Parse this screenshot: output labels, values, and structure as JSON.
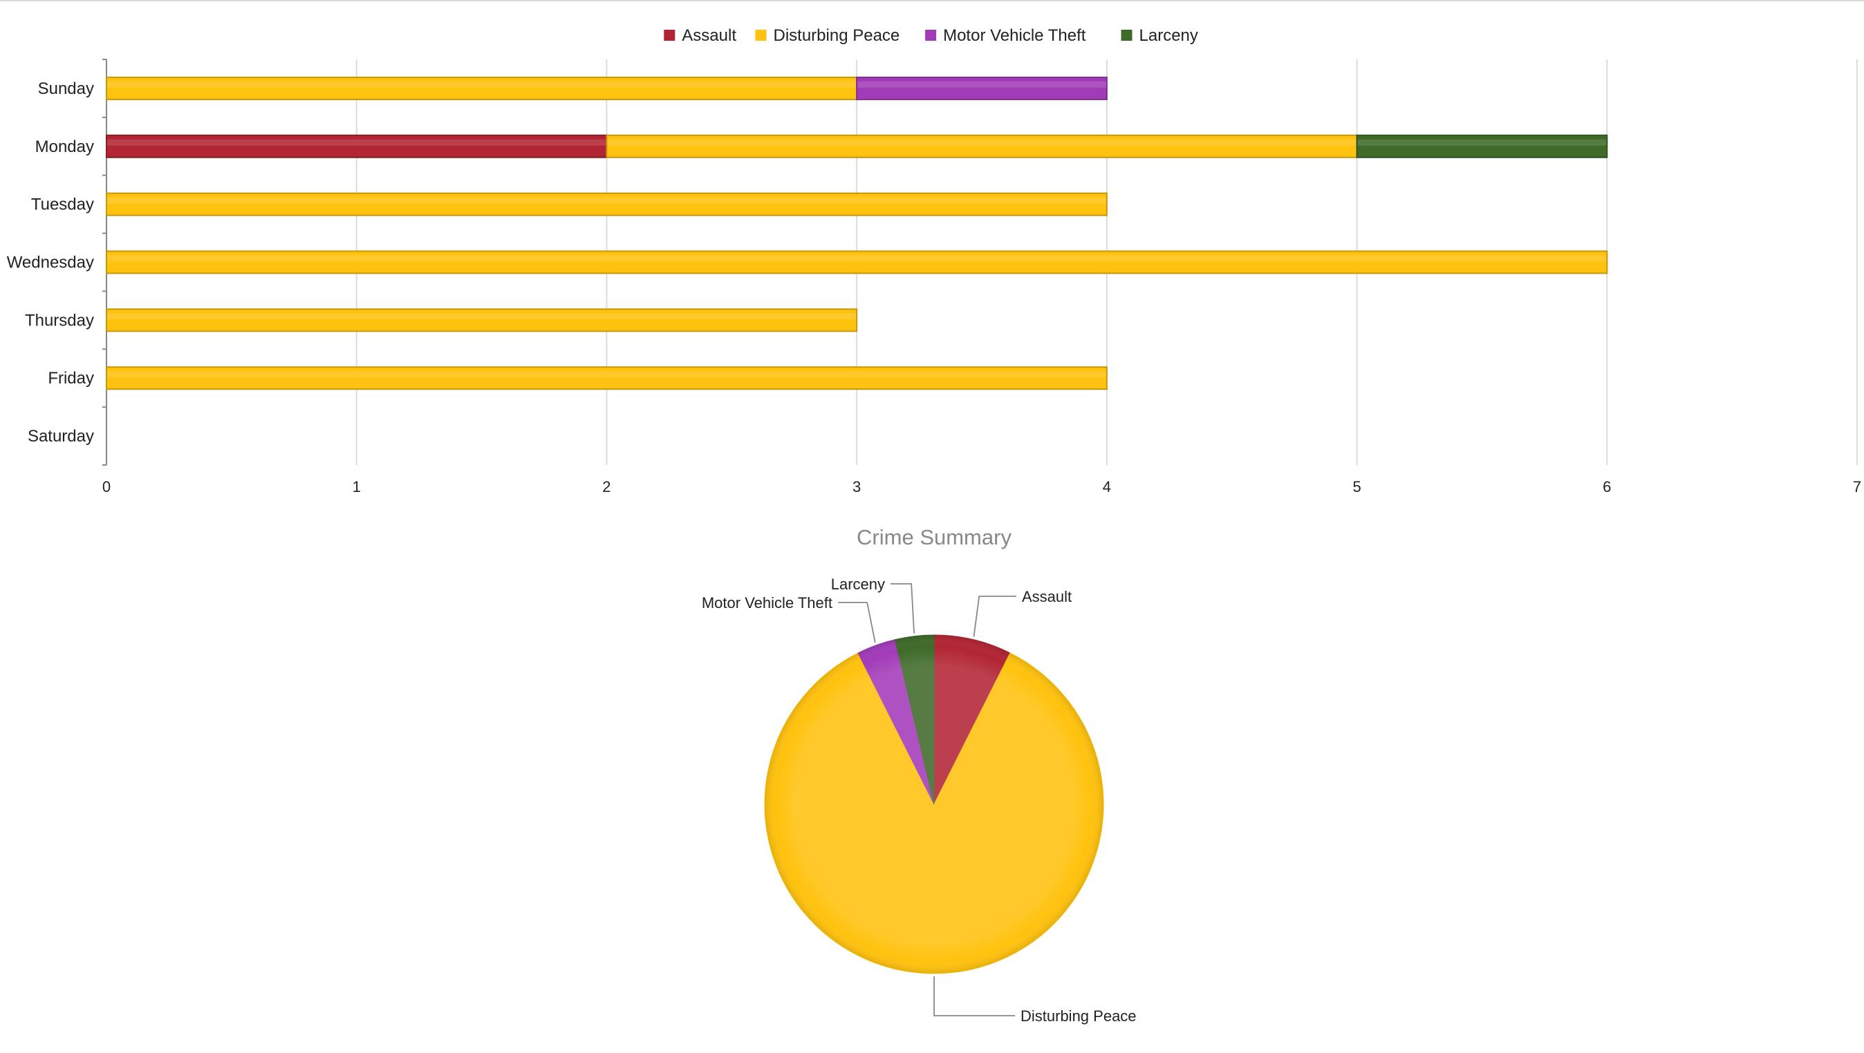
{
  "colors": {
    "Assault": "#b22534",
    "Disturbing Peace": "#ffc20e",
    "Motor Vehicle Theft": "#a23bb8",
    "Larceny": "#3f6a2a"
  },
  "chart_data": [
    {
      "type": "bar",
      "orientation": "horizontal",
      "stacked": true,
      "categories": [
        "Sunday",
        "Monday",
        "Tuesday",
        "Wednesday",
        "Thursday",
        "Friday",
        "Saturday"
      ],
      "series": [
        {
          "name": "Assault",
          "values": [
            0,
            2,
            0,
            0,
            0,
            0,
            0
          ]
        },
        {
          "name": "Disturbing Peace",
          "values": [
            3,
            3,
            4,
            6,
            3,
            4,
            0
          ]
        },
        {
          "name": "Motor Vehicle Theft",
          "values": [
            1,
            0,
            0,
            0,
            0,
            0,
            0
          ]
        },
        {
          "name": "Larceny",
          "values": [
            0,
            1,
            0,
            0,
            0,
            0,
            0
          ]
        }
      ],
      "xlim": [
        0,
        7
      ],
      "xticks": [
        0,
        1,
        2,
        3,
        4,
        5,
        6,
        7
      ],
      "grid": true,
      "legend": "top-center"
    },
    {
      "type": "pie",
      "title": "Crime Summary",
      "slices": [
        {
          "name": "Assault",
          "value": 2
        },
        {
          "name": "Disturbing Peace",
          "value": 23
        },
        {
          "name": "Motor Vehicle Theft",
          "value": 1
        },
        {
          "name": "Larceny",
          "value": 1
        }
      ],
      "legend": "none"
    }
  ]
}
